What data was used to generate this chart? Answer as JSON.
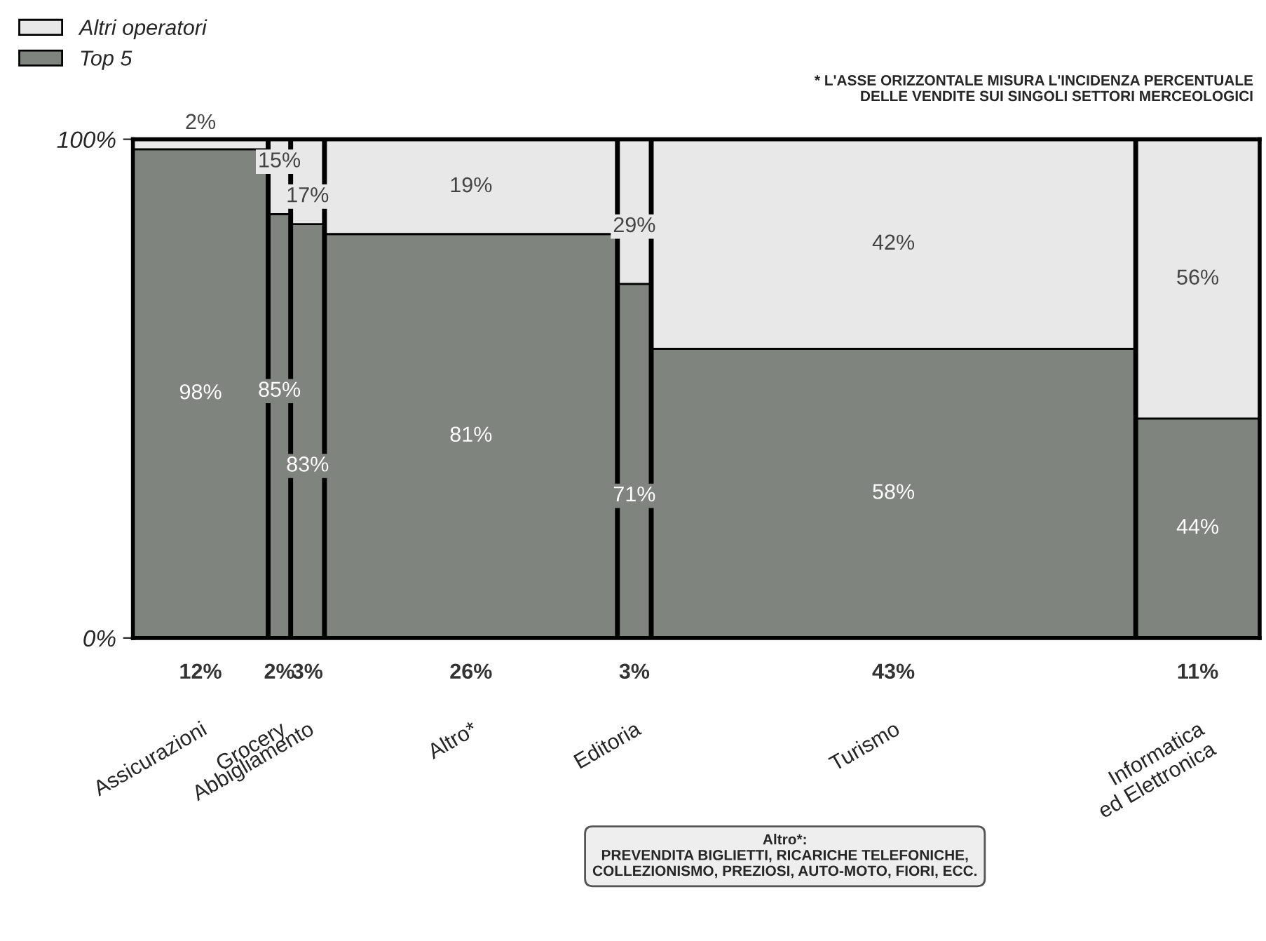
{
  "chart_data": {
    "type": "bar",
    "stacked": true,
    "categories": [
      "Assicurazioni",
      "Grocery",
      "Abbigliamento",
      "Altro*",
      "Editoria",
      "Turismo",
      "Informatica\ned Elettronica"
    ],
    "series": [
      {
        "name": "Top 5",
        "color": "#7f847f",
        "values": [
          98,
          85,
          83,
          81,
          71,
          58,
          44
        ],
        "value_labels": [
          "98%",
          "85%",
          "83%",
          "81%",
          "71%",
          "58%",
          "44%"
        ]
      },
      {
        "name": "Altri operatori",
        "color": "#e8e8e8",
        "values": [
          2,
          15,
          17,
          19,
          29,
          42,
          56
        ],
        "value_labels": [
          "2%",
          "15%",
          "17%",
          "19%",
          "29%",
          "42%",
          "56%"
        ]
      }
    ],
    "ylim": [
      0,
      100
    ],
    "yticks": [
      {
        "value": 0,
        "label": "0%"
      },
      {
        "value": 100,
        "label": "100%"
      }
    ],
    "legend": "top left",
    "annotations": [
      "* L'ASSE ORIZZONTALE MISURA L'INCIDENZA PERCENTUALE\nDELLE VENDITE SUI SINGOLI SETTORI MERCEOLOGICI",
      "Altro*:\nPREVENDITA BIGLIETTI, RICARICHE TELEFONICHE,\nCOLLEZIONISMO, PREZIOSI, AUTO-MOTO, FIORI, ECC.",
      "12%",
      "2%",
      "3%",
      "26%",
      "3%",
      "43%",
      "11%"
    ]
  }
}
